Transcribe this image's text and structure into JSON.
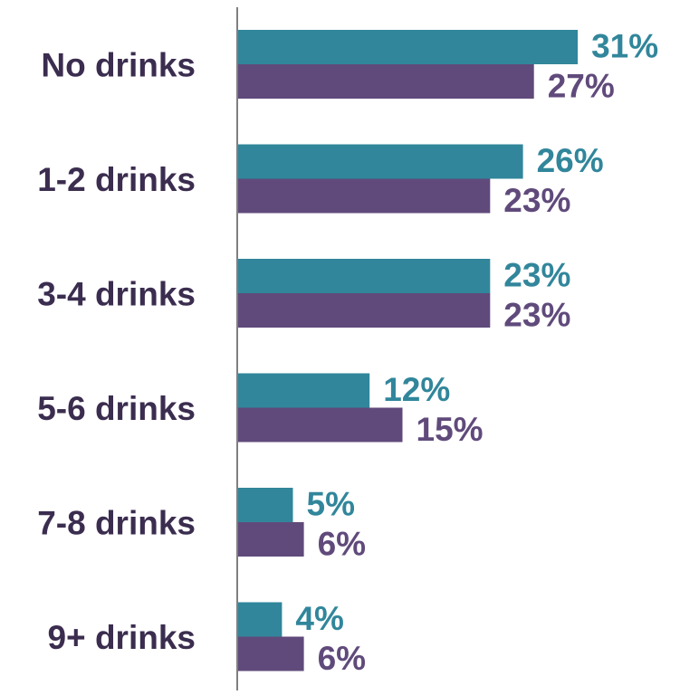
{
  "chart_data": {
    "type": "bar",
    "orientation": "horizontal",
    "categories": [
      "No drinks",
      "1-2 drinks",
      "3-4 drinks",
      "5-6 drinks",
      "7-8 drinks",
      "9+ drinks"
    ],
    "series": [
      {
        "values": [
          31,
          26,
          23,
          12,
          5,
          4
        ],
        "labels": [
          "31%",
          "26%",
          "23%",
          "12%",
          "5%",
          "4%"
        ],
        "color": "#31869b"
      },
      {
        "values": [
          27,
          23,
          23,
          15,
          6,
          6
        ],
        "labels": [
          "27%",
          "23%",
          "23%",
          "15%",
          "6%",
          "6%"
        ],
        "color": "#604a7b"
      }
    ],
    "category_color": "#3b2d4f",
    "axis_color": "#7f7f7f",
    "title": "",
    "xlabel": "",
    "ylabel": "",
    "xlim": [
      0,
      31
    ],
    "grid": false,
    "legend": "none"
  }
}
